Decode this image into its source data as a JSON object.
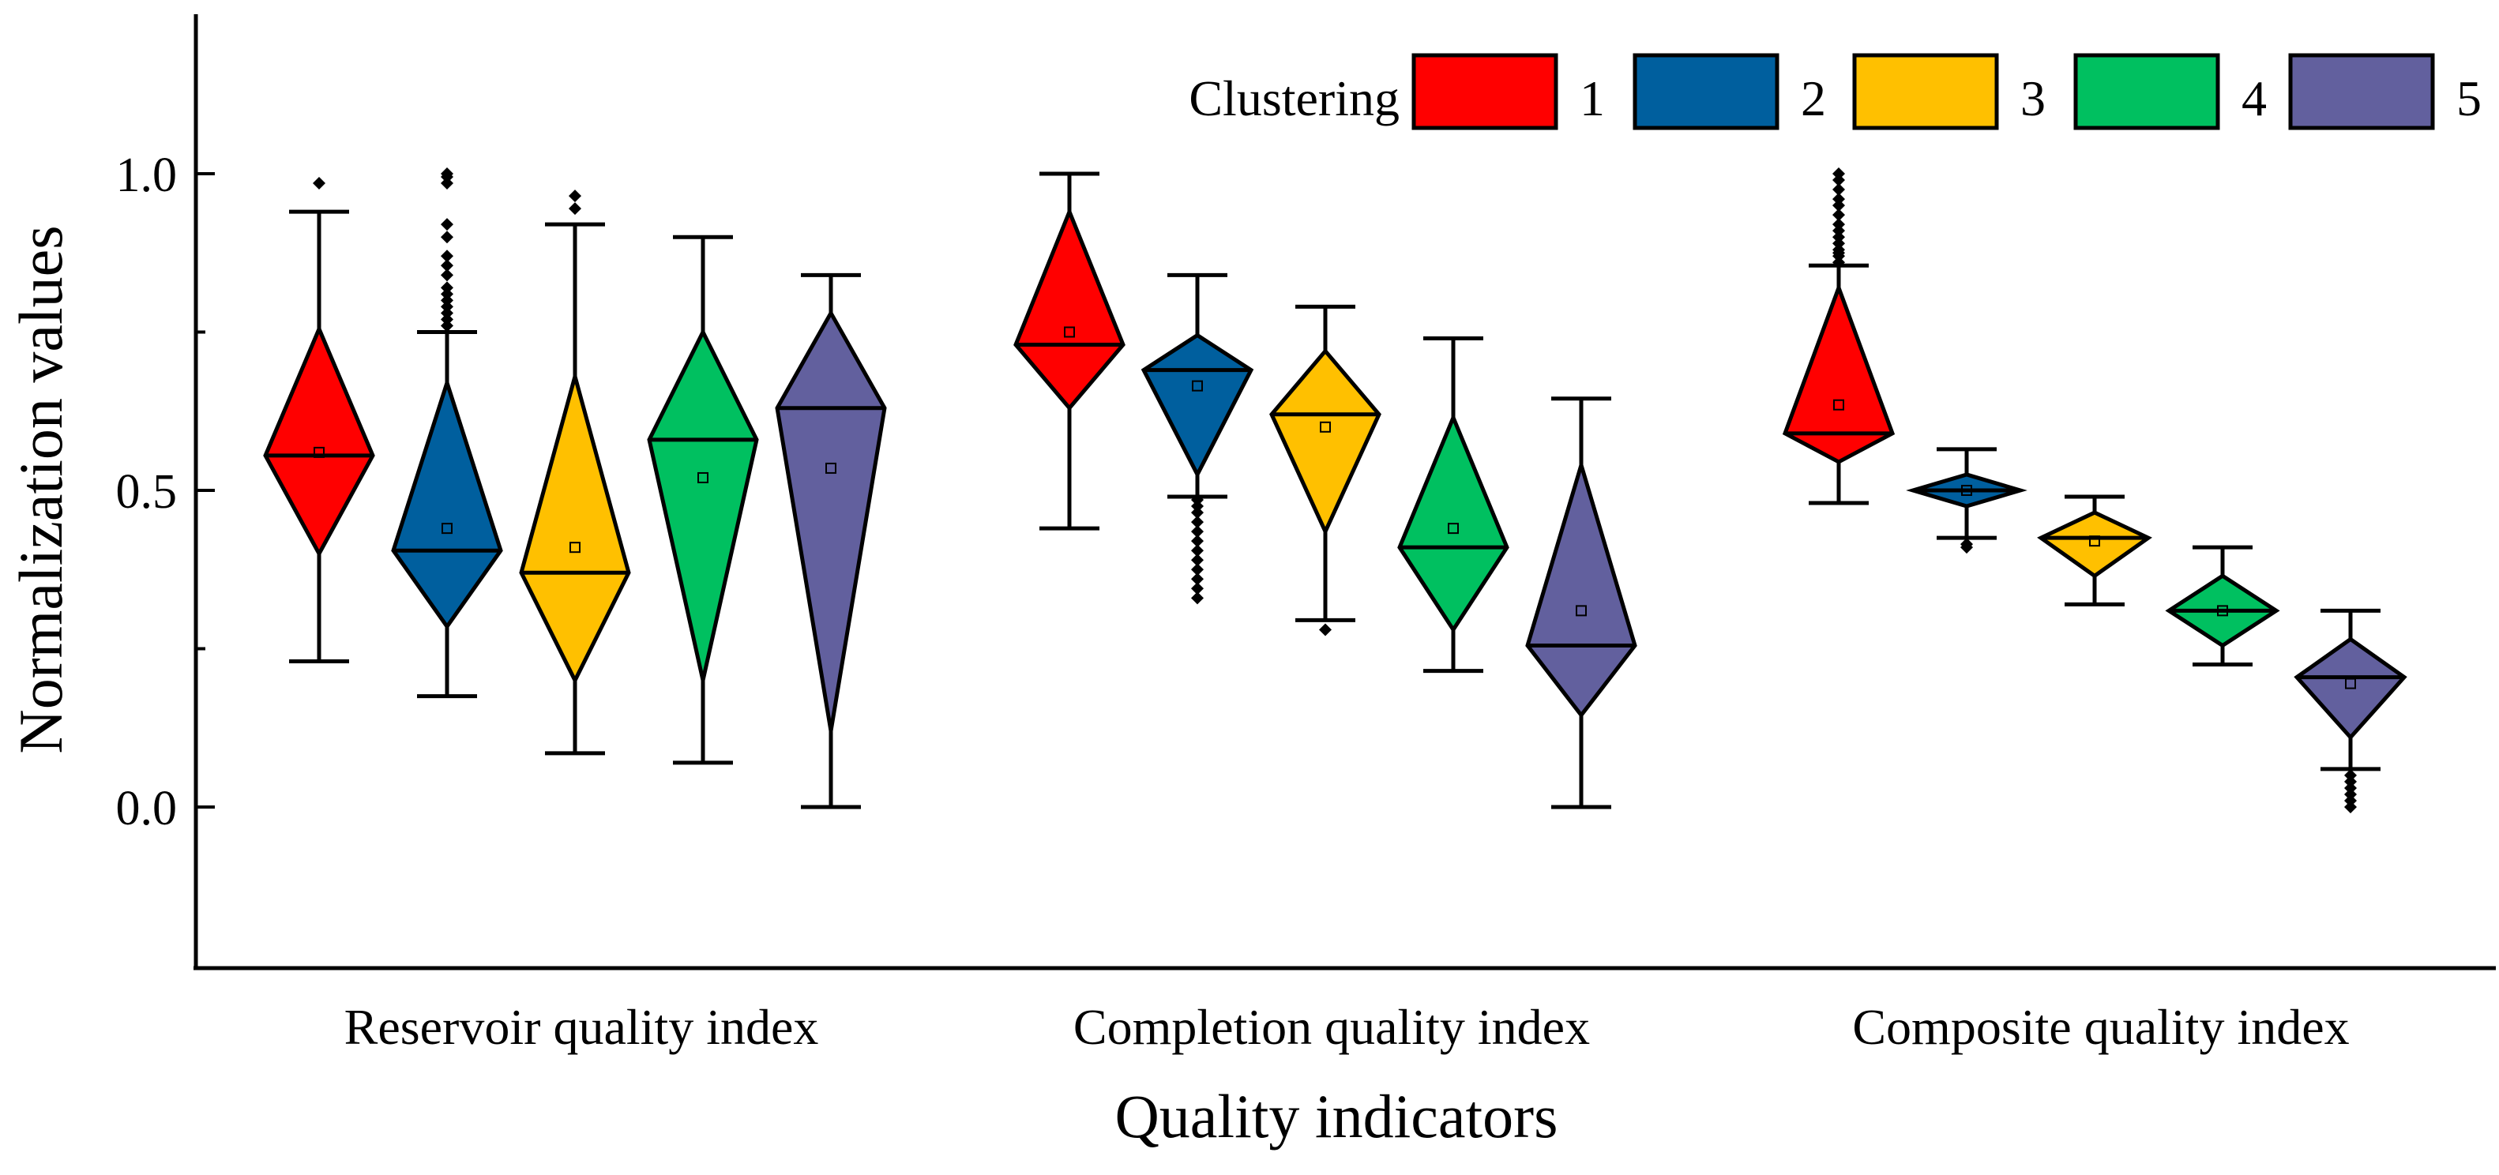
{
  "chart_data": {
    "type": "box-diamond",
    "title": "",
    "xlabel": "Quality indicators",
    "ylabel": "Normalization values",
    "ylim": [
      -0.25,
      1.25
    ],
    "yticks": [
      0.0,
      0.5,
      1.0
    ],
    "ytick_labels": [
      "0.0",
      "0.5",
      "1.0"
    ],
    "categories": [
      "Reservoir quality index",
      "Completion quality  index",
      "Composite quality index"
    ],
    "legend": {
      "title": "Clustering",
      "position": "top-right",
      "entries": [
        "1",
        "2",
        "3",
        "4",
        "5"
      ]
    },
    "colors": [
      "#ff0000",
      "#005f9e",
      "#ffc000",
      "#00c060",
      "#62609e"
    ],
    "series": [
      {
        "name": "1",
        "boxes": [
          {
            "min": 0.23,
            "q1": 0.4,
            "median": 0.555,
            "q3": 0.755,
            "max": 0.94,
            "mean": 0.56,
            "outliers": [
              0.985
            ]
          },
          {
            "min": 0.44,
            "q1": 0.63,
            "median": 0.73,
            "q3": 0.94,
            "max": 1.0,
            "mean": 0.75,
            "outliers": []
          },
          {
            "min": 0.48,
            "q1": 0.545,
            "median": 0.59,
            "q3": 0.82,
            "max": 0.855,
            "mean": 0.635,
            "outliers": [
              0.86,
              0.87,
              0.875,
              0.88,
              0.89,
              0.9,
              0.91,
              0.92,
              0.935,
              0.95,
              0.96,
              0.975,
              0.99,
              1.0
            ]
          }
        ]
      },
      {
        "name": "2",
        "boxes": [
          {
            "min": 0.175,
            "q1": 0.285,
            "median": 0.405,
            "q3": 0.67,
            "max": 0.75,
            "mean": 0.44,
            "outliers": [
              0.76,
              0.77,
              0.78,
              0.79,
              0.8,
              0.81,
              0.82,
              0.84,
              0.855,
              0.87,
              0.9,
              0.92,
              0.985,
              0.995,
              1.0
            ]
          }
        ]
      },
      {
        "name": "3",
        "boxes": [
          {
            "min": 0.085,
            "q1": 0.2,
            "median": 0.37,
            "q3": 0.68,
            "max": 0.92,
            "mean": 0.41,
            "outliers": [
              0.945,
              0.965
            ]
          }
        ]
      },
      {
        "name": "4",
        "boxes": [
          {
            "min": 0.07,
            "q1": 0.2,
            "median": 0.58,
            "q3": 0.75,
            "max": 0.9,
            "mean": 0.52,
            "outliers": []
          }
        ]
      },
      {
        "name": "5",
        "boxes": [
          {
            "min": 0.0,
            "q1": 0.12,
            "median": 0.63,
            "q3": 0.78,
            "max": 0.84,
            "mean": 0.535,
            "outliers": []
          }
        ]
      }
    ],
    "groups": [
      {
        "label": "Reservoir quality index",
        "boxes": [
          {
            "cluster": "1",
            "min": 0.23,
            "q1": 0.4,
            "median": 0.555,
            "q3": 0.755,
            "max": 0.94,
            "mean": 0.56,
            "outliers": [
              0.985
            ]
          },
          {
            "cluster": "2",
            "min": 0.175,
            "q1": 0.285,
            "median": 0.405,
            "q3": 0.67,
            "max": 0.75,
            "mean": 0.44,
            "outliers": [
              0.76,
              0.77,
              0.78,
              0.79,
              0.8,
              0.81,
              0.82,
              0.84,
              0.855,
              0.87,
              0.9,
              0.92,
              0.985,
              0.995,
              1.0
            ]
          },
          {
            "cluster": "3",
            "min": 0.085,
            "q1": 0.2,
            "median": 0.37,
            "q3": 0.68,
            "max": 0.92,
            "mean": 0.41,
            "outliers": [
              0.945,
              0.965
            ]
          },
          {
            "cluster": "4",
            "min": 0.07,
            "q1": 0.2,
            "median": 0.58,
            "q3": 0.75,
            "max": 0.9,
            "mean": 0.52,
            "outliers": []
          },
          {
            "cluster": "5",
            "min": 0.0,
            "q1": 0.12,
            "median": 0.63,
            "q3": 0.78,
            "max": 0.84,
            "mean": 0.535,
            "outliers": []
          }
        ]
      },
      {
        "label": "Completion quality  index",
        "boxes": [
          {
            "cluster": "1",
            "min": 0.44,
            "q1": 0.63,
            "median": 0.73,
            "q3": 0.94,
            "max": 1.0,
            "mean": 0.75,
            "outliers": []
          },
          {
            "cluster": "2",
            "min": 0.49,
            "q1": 0.525,
            "median": 0.69,
            "q3": 0.745,
            "max": 0.84,
            "mean": 0.665,
            "outliers": [
              0.33,
              0.345,
              0.36,
              0.375,
              0.39,
              0.405,
              0.42,
              0.435,
              0.45,
              0.465,
              0.475,
              0.485
            ]
          },
          {
            "cluster": "3",
            "min": 0.295,
            "q1": 0.435,
            "median": 0.62,
            "q3": 0.72,
            "max": 0.79,
            "mean": 0.6,
            "outliers": [
              0.28
            ]
          },
          {
            "cluster": "4",
            "min": 0.215,
            "q1": 0.28,
            "median": 0.41,
            "q3": 0.615,
            "max": 0.74,
            "mean": 0.44,
            "outliers": []
          },
          {
            "cluster": "5",
            "min": 0.0,
            "q1": 0.145,
            "median": 0.255,
            "q3": 0.54,
            "max": 0.645,
            "mean": 0.31,
            "outliers": []
          }
        ]
      },
      {
        "label": "Composite quality index",
        "boxes": [
          {
            "cluster": "1",
            "min": 0.48,
            "q1": 0.545,
            "median": 0.59,
            "q3": 0.82,
            "max": 0.855,
            "mean": 0.635,
            "outliers": [
              0.86,
              0.87,
              0.875,
              0.88,
              0.89,
              0.9,
              0.91,
              0.92,
              0.935,
              0.95,
              0.96,
              0.975,
              0.99,
              1.0
            ]
          },
          {
            "cluster": "2",
            "min": 0.425,
            "q1": 0.475,
            "median": 0.5,
            "q3": 0.525,
            "max": 0.565,
            "mean": 0.5,
            "outliers": [
              0.41,
              0.415
            ]
          },
          {
            "cluster": "3",
            "min": 0.32,
            "q1": 0.365,
            "median": 0.425,
            "q3": 0.465,
            "max": 0.49,
            "mean": 0.42,
            "outliers": []
          },
          {
            "cluster": "4",
            "min": 0.225,
            "q1": 0.255,
            "median": 0.31,
            "q3": 0.365,
            "max": 0.41,
            "mean": 0.31,
            "outliers": []
          },
          {
            "cluster": "5",
            "min": 0.06,
            "q1": 0.11,
            "median": 0.205,
            "q3": 0.265,
            "max": 0.31,
            "mean": 0.195,
            "outliers": [
              0.0,
              0.01,
              0.02,
              0.03,
              0.04,
              0.05
            ]
          }
        ]
      }
    ]
  }
}
